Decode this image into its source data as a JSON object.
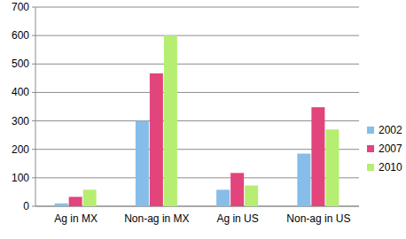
{
  "chart_data": {
    "type": "bar",
    "categories": [
      "Ag in MX",
      "Non-ag in MX",
      "Ag in US",
      "Non-ag in US"
    ],
    "series": [
      {
        "name": "2002",
        "color": "#86bde9",
        "values": [
          10,
          300,
          58,
          185
        ]
      },
      {
        "name": "2007",
        "color": "#e2447c",
        "values": [
          33,
          467,
          117,
          348
        ]
      },
      {
        "name": "2010",
        "color": "#b6ee72",
        "values": [
          58,
          600,
          73,
          270
        ]
      }
    ],
    "ylim": [
      0,
      700
    ],
    "yticks": [
      0,
      100,
      200,
      300,
      400,
      500,
      600,
      700
    ],
    "grid": true,
    "legend": "right"
  }
}
